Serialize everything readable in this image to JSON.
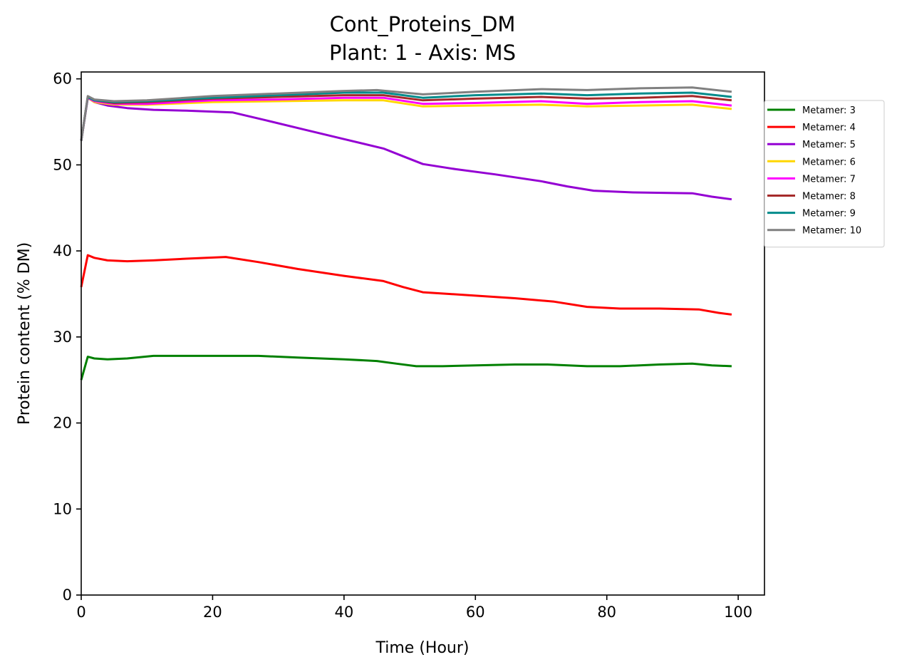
{
  "chart_data": {
    "type": "line",
    "title": "Cont_Proteins_DM",
    "subtitle": "Plant: 1 - Axis: MS",
    "xlabel": "Time (Hour)",
    "ylabel": "Protein content (% DM)",
    "xlim": [
      0,
      104
    ],
    "ylim": [
      0,
      60.8
    ],
    "xticks": [
      0,
      20,
      40,
      60,
      80,
      100
    ],
    "yticks": [
      0,
      10,
      20,
      30,
      40,
      50,
      60
    ],
    "grid": false,
    "legend_position": "right",
    "series": [
      {
        "name": "Metamer: 3",
        "color": "#008000",
        "points": [
          [
            0,
            25.0
          ],
          [
            1,
            27.7
          ],
          [
            2,
            27.5
          ],
          [
            4,
            27.4
          ],
          [
            7,
            27.5
          ],
          [
            11,
            27.8
          ],
          [
            16,
            27.8
          ],
          [
            22,
            27.8
          ],
          [
            27,
            27.8
          ],
          [
            33,
            27.6
          ],
          [
            40,
            27.4
          ],
          [
            45,
            27.2
          ],
          [
            48,
            26.9
          ],
          [
            51,
            26.6
          ],
          [
            55,
            26.6
          ],
          [
            60,
            26.7
          ],
          [
            66,
            26.8
          ],
          [
            71,
            26.8
          ],
          [
            77,
            26.6
          ],
          [
            82,
            26.6
          ],
          [
            88,
            26.8
          ],
          [
            93,
            26.9
          ],
          [
            96,
            26.7
          ],
          [
            99,
            26.6
          ]
        ]
      },
      {
        "name": "Metamer: 4",
        "color": "#ff0000",
        "points": [
          [
            0,
            35.8
          ],
          [
            1,
            39.5
          ],
          [
            2,
            39.2
          ],
          [
            4,
            38.9
          ],
          [
            7,
            38.8
          ],
          [
            11,
            38.9
          ],
          [
            16,
            39.1
          ],
          [
            22,
            39.3
          ],
          [
            27,
            38.7
          ],
          [
            33,
            37.9
          ],
          [
            40,
            37.1
          ],
          [
            46,
            36.5
          ],
          [
            49,
            35.8
          ],
          [
            52,
            35.2
          ],
          [
            56,
            35.0
          ],
          [
            60,
            34.8
          ],
          [
            66,
            34.5
          ],
          [
            72,
            34.1
          ],
          [
            77,
            33.5
          ],
          [
            82,
            33.3
          ],
          [
            88,
            33.3
          ],
          [
            94,
            33.2
          ],
          [
            97,
            32.8
          ],
          [
            99,
            32.6
          ]
        ]
      },
      {
        "name": "Metamer: 5",
        "color": "#9400d3",
        "points": [
          [
            0,
            52.8
          ],
          [
            1,
            57.8
          ],
          [
            2,
            57.3
          ],
          [
            4,
            56.9
          ],
          [
            7,
            56.6
          ],
          [
            11,
            56.4
          ],
          [
            16,
            56.3
          ],
          [
            23,
            56.1
          ],
          [
            28,
            55.2
          ],
          [
            34,
            54.1
          ],
          [
            40,
            53.0
          ],
          [
            46,
            51.9
          ],
          [
            49,
            51.0
          ],
          [
            52,
            50.1
          ],
          [
            57,
            49.5
          ],
          [
            63,
            48.9
          ],
          [
            70,
            48.1
          ],
          [
            74,
            47.5
          ],
          [
            78,
            47.0
          ],
          [
            84,
            46.8
          ],
          [
            93,
            46.7
          ],
          [
            96,
            46.3
          ],
          [
            99,
            46.0
          ]
        ]
      },
      {
        "name": "Metamer: 6",
        "color": "#ffd700",
        "points": [
          [
            0,
            52.8
          ],
          [
            1,
            57.8
          ],
          [
            2,
            57.3
          ],
          [
            5,
            57.0
          ],
          [
            10,
            57.0
          ],
          [
            20,
            57.3
          ],
          [
            30,
            57.4
          ],
          [
            40,
            57.5
          ],
          [
            46,
            57.5
          ],
          [
            52,
            56.8
          ],
          [
            60,
            56.9
          ],
          [
            70,
            57.0
          ],
          [
            77,
            56.8
          ],
          [
            85,
            56.9
          ],
          [
            93,
            57.0
          ],
          [
            99,
            56.5
          ]
        ]
      },
      {
        "name": "Metamer: 7",
        "color": "#ff00ff",
        "points": [
          [
            0,
            52.8
          ],
          [
            1,
            57.8
          ],
          [
            2,
            57.4
          ],
          [
            5,
            57.1
          ],
          [
            10,
            57.1
          ],
          [
            20,
            57.5
          ],
          [
            30,
            57.6
          ],
          [
            40,
            57.8
          ],
          [
            46,
            57.8
          ],
          [
            52,
            57.1
          ],
          [
            60,
            57.2
          ],
          [
            70,
            57.4
          ],
          [
            77,
            57.1
          ],
          [
            85,
            57.3
          ],
          [
            93,
            57.4
          ],
          [
            99,
            56.9
          ]
        ]
      },
      {
        "name": "Metamer: 8",
        "color": "#a52a2a",
        "points": [
          [
            0,
            52.8
          ],
          [
            1,
            57.9
          ],
          [
            2,
            57.5
          ],
          [
            5,
            57.2
          ],
          [
            10,
            57.3
          ],
          [
            20,
            57.7
          ],
          [
            30,
            57.9
          ],
          [
            40,
            58.1
          ],
          [
            46,
            58.1
          ],
          [
            52,
            57.5
          ],
          [
            60,
            57.7
          ],
          [
            70,
            57.9
          ],
          [
            77,
            57.7
          ],
          [
            85,
            57.8
          ],
          [
            93,
            58.0
          ],
          [
            99,
            57.5
          ]
        ]
      },
      {
        "name": "Metamer: 9",
        "color": "#008b8b",
        "points": [
          [
            0,
            52.8
          ],
          [
            1,
            57.9
          ],
          [
            2,
            57.5
          ],
          [
            5,
            57.3
          ],
          [
            10,
            57.4
          ],
          [
            20,
            57.8
          ],
          [
            30,
            58.1
          ],
          [
            40,
            58.4
          ],
          [
            46,
            58.4
          ],
          [
            52,
            57.8
          ],
          [
            60,
            58.1
          ],
          [
            70,
            58.3
          ],
          [
            77,
            58.1
          ],
          [
            85,
            58.3
          ],
          [
            93,
            58.4
          ],
          [
            99,
            57.9
          ]
        ]
      },
      {
        "name": "Metamer: 10",
        "color": "#808080",
        "points": [
          [
            0,
            52.8
          ],
          [
            1,
            58.0
          ],
          [
            2,
            57.6
          ],
          [
            5,
            57.4
          ],
          [
            10,
            57.5
          ],
          [
            20,
            58.0
          ],
          [
            30,
            58.3
          ],
          [
            40,
            58.6
          ],
          [
            45,
            58.7
          ],
          [
            52,
            58.2
          ],
          [
            60,
            58.5
          ],
          [
            70,
            58.8
          ],
          [
            77,
            58.7
          ],
          [
            85,
            58.9
          ],
          [
            93,
            59.0
          ],
          [
            99,
            58.5
          ]
        ]
      }
    ]
  }
}
